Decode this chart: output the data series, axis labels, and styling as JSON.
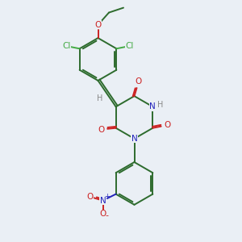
{
  "background_color": "#eaeff5",
  "bond_color": "#2d6b2d",
  "atom_colors": {
    "O": "#cc2222",
    "N": "#2222bb",
    "Cl": "#44aa44",
    "H": "#888888",
    "C": "#2d6b2d"
  },
  "figsize": [
    3.0,
    3.0
  ],
  "dpi": 100
}
